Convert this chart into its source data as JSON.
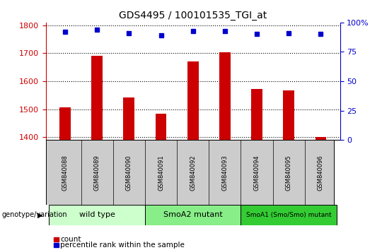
{
  "title": "GDS4495 / 100101535_TGI_at",
  "samples": [
    "GSM840088",
    "GSM840089",
    "GSM840090",
    "GSM840091",
    "GSM840092",
    "GSM840093",
    "GSM840094",
    "GSM840095",
    "GSM840096"
  ],
  "counts": [
    1506,
    1690,
    1543,
    1484,
    1672,
    1703,
    1572,
    1568,
    1400
  ],
  "percentile_ranks": [
    92,
    94,
    91,
    89,
    93,
    93,
    90,
    91,
    90
  ],
  "ylim_left": [
    1390,
    1810
  ],
  "ylim_right": [
    0,
    100
  ],
  "yticks_left": [
    1400,
    1500,
    1600,
    1700,
    1800
  ],
  "yticks_right": [
    0,
    25,
    50,
    75,
    100
  ],
  "ytick_right_labels": [
    "0",
    "25",
    "50",
    "75",
    "100%"
  ],
  "groups": [
    {
      "label": "wild type",
      "start": 0,
      "end": 3,
      "color": "#ccffcc"
    },
    {
      "label": "SmoA2 mutant",
      "start": 3,
      "end": 6,
      "color": "#88ee88"
    },
    {
      "label": "SmoA1 (Smo/Smo) mutant",
      "start": 6,
      "end": 9,
      "color": "#33cc33"
    }
  ],
  "bar_color": "#cc0000",
  "dot_color": "#0000cc",
  "left_axis_color": "#cc0000",
  "right_axis_color": "#0000cc",
  "bg_color": "#ffffff",
  "tick_label_area_color": "#cccccc",
  "genotype_label": "genotype/variation",
  "bar_width": 0.35,
  "dot_size": 5
}
